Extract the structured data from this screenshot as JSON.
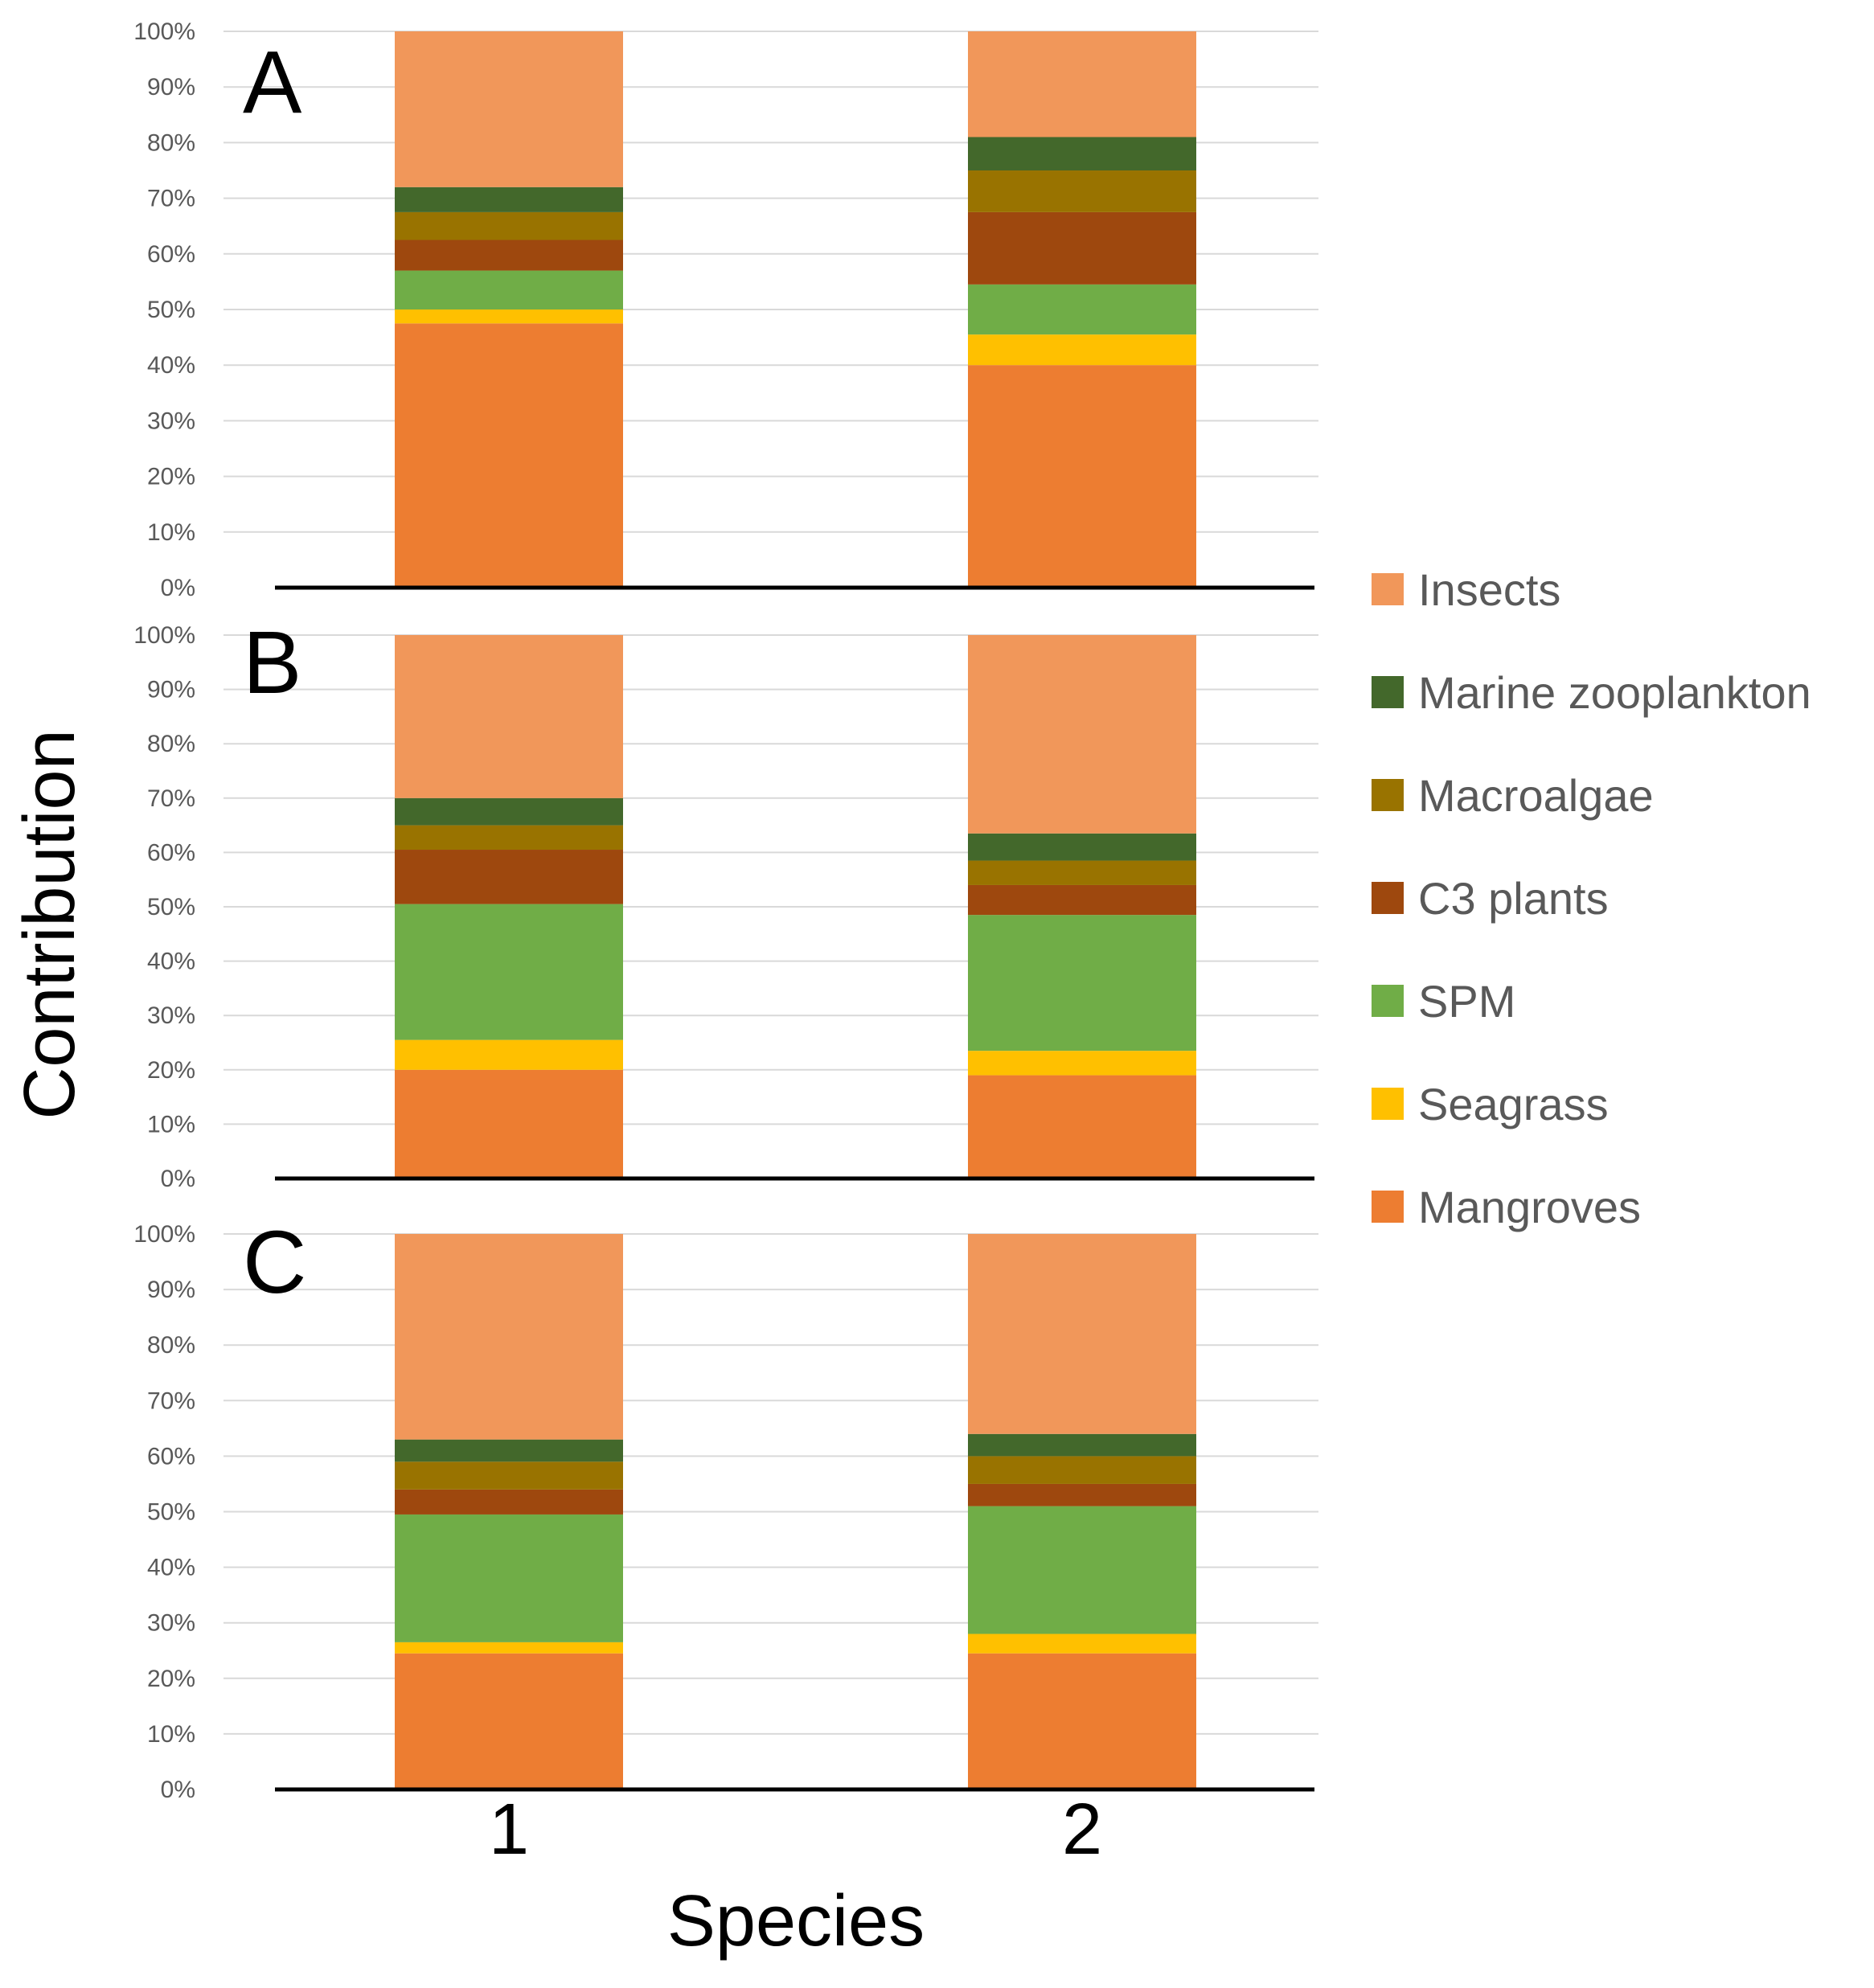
{
  "chart_data": {
    "type": "bar",
    "stacked": true,
    "percent_stacked": true,
    "xlabel": "Species",
    "ylabel": "Contribution",
    "categories": [
      "1",
      "2"
    ],
    "ylim": [
      0,
      100
    ],
    "y_ticks": [
      "0%",
      "10%",
      "20%",
      "30%",
      "40%",
      "50%",
      "60%",
      "70%",
      "80%",
      "90%",
      "100%"
    ],
    "grid": true,
    "legend_position": "right",
    "series_order": [
      "Mangroves",
      "Seagrass",
      "SPM",
      "C3 plants",
      "Macroalgae",
      "Marine zooplankton",
      "Insects"
    ],
    "legend_order": [
      "Insects",
      "Marine zooplankton",
      "Macroalgae",
      "C3 plants",
      "SPM",
      "Seagrass",
      "Mangroves"
    ],
    "colors": {
      "Mangroves": "#ed7d31",
      "Seagrass": "#ffc000",
      "SPM": "#70ad47",
      "C3 plants": "#9e480e",
      "Macroalgae": "#997300",
      "Marine zooplankton": "#43682b",
      "Insects": "#f1975a"
    },
    "panels": [
      {
        "label": "A",
        "series": [
          {
            "name": "Mangroves",
            "values": [
              47.5,
              40
            ]
          },
          {
            "name": "Seagrass",
            "values": [
              2.5,
              5.5
            ]
          },
          {
            "name": "SPM",
            "values": [
              7,
              9
            ]
          },
          {
            "name": "C3 plants",
            "values": [
              5.5,
              13
            ]
          },
          {
            "name": "Macroalgae",
            "values": [
              5,
              7.5
            ]
          },
          {
            "name": "Marine zooplankton",
            "values": [
              4.5,
              6
            ]
          },
          {
            "name": "Insects",
            "values": [
              28,
              19
            ]
          }
        ]
      },
      {
        "label": "B",
        "series": [
          {
            "name": "Mangroves",
            "values": [
              20,
              19
            ]
          },
          {
            "name": "Seagrass",
            "values": [
              5.5,
              4.5
            ]
          },
          {
            "name": "SPM",
            "values": [
              25,
              25
            ]
          },
          {
            "name": "C3 plants",
            "values": [
              10,
              5.5
            ]
          },
          {
            "name": "Macroalgae",
            "values": [
              4.5,
              4.5
            ]
          },
          {
            "name": "Marine zooplankton",
            "values": [
              5,
              5
            ]
          },
          {
            "name": "Insects",
            "values": [
              30,
              36.5
            ]
          }
        ]
      },
      {
        "label": "C",
        "series": [
          {
            "name": "Mangroves",
            "values": [
              24.5,
              24.5
            ]
          },
          {
            "name": "Seagrass",
            "values": [
              2,
              3.5
            ]
          },
          {
            "name": "SPM",
            "values": [
              23,
              23
            ]
          },
          {
            "name": "C3 plants",
            "values": [
              4.5,
              4
            ]
          },
          {
            "name": "Macroalgae",
            "values": [
              5,
              5
            ]
          },
          {
            "name": "Marine zooplankton",
            "values": [
              4,
              4
            ]
          },
          {
            "name": "Insects",
            "values": [
              37,
              36
            ]
          }
        ]
      }
    ]
  }
}
